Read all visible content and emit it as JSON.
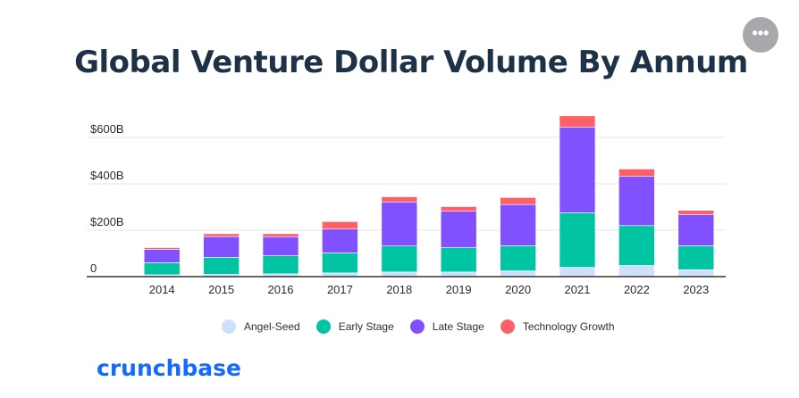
{
  "title": "Global Venture Dollar Volume By Annum",
  "menu_icon": "more-options-icon",
  "menu_glyph": "•••",
  "logo_text": "crunchbase",
  "chart_data": {
    "type": "bar",
    "stacked": true,
    "title": "Global Venture Dollar Volume By Annum",
    "xlabel": "",
    "ylabel": "",
    "ylim": [
      0,
      700
    ],
    "y_ticks": [
      0,
      200,
      400,
      600
    ],
    "y_tick_labels": [
      "0",
      "$200B",
      "$400B",
      "$600B"
    ],
    "grid": true,
    "legend_position": "bottom",
    "categories": [
      "2014",
      "2015",
      "2016",
      "2017",
      "2018",
      "2019",
      "2020",
      "2021",
      "2022",
      "2023"
    ],
    "series": [
      {
        "name": "Angel-Seed",
        "color": "#cfe0fb",
        "values": [
          8,
          10,
          12,
          16,
          20,
          20,
          25,
          40,
          48,
          30
        ]
      },
      {
        "name": "Early Stage",
        "color": "#00c4a2",
        "values": [
          52,
          73,
          78,
          86,
          112,
          105,
          108,
          235,
          172,
          103
        ]
      },
      {
        "name": "Late Stage",
        "color": "#8251ff",
        "values": [
          58,
          90,
          82,
          103,
          190,
          157,
          178,
          370,
          212,
          135
        ]
      },
      {
        "name": "Technology Growth",
        "color": "#fd6167",
        "values": [
          7,
          12,
          13,
          32,
          22,
          20,
          30,
          48,
          32,
          18
        ]
      }
    ]
  }
}
